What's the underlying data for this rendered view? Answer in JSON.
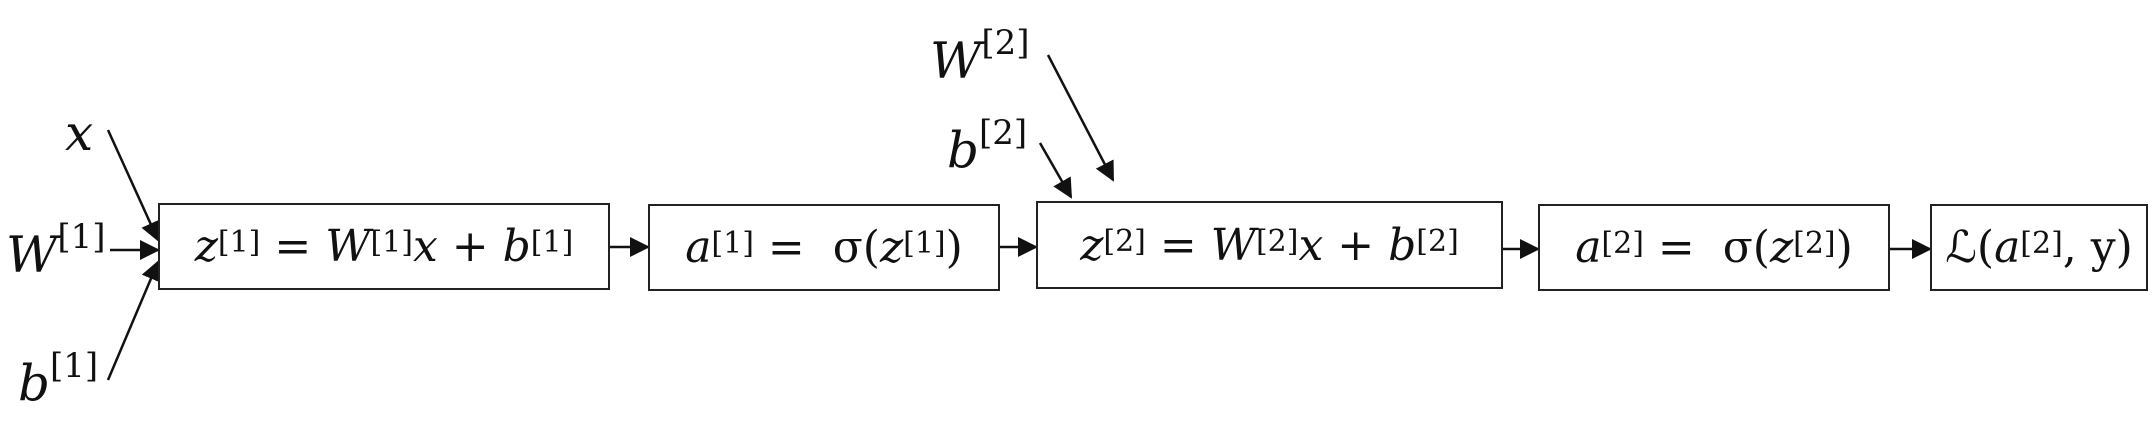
{
  "inputs": {
    "x": "x",
    "W1": "W",
    "W1_sup": "[1]",
    "b1": "b",
    "b1_sup": "[1]",
    "W2": "W",
    "W2_sup": "[2]",
    "b2": "b",
    "b2_sup": "[2]"
  },
  "boxes": [
    {
      "id": "z1",
      "parts": [
        "z",
        "[1]",
        " = ",
        "W",
        "[1]",
        "x",
        " + ",
        "b",
        "[1]"
      ]
    },
    {
      "id": "a1",
      "parts": [
        "a",
        "[1]",
        " =  σ(",
        "z",
        "[1]",
        ")"
      ]
    },
    {
      "id": "z2",
      "parts": [
        "z",
        "[2]",
        " = ",
        "W",
        "[2]",
        "x",
        " + ",
        "b",
        "[2]"
      ]
    },
    {
      "id": "a2",
      "parts": [
        "a",
        "[2]",
        " =  σ(",
        "z",
        "[2]",
        ")"
      ]
    },
    {
      "id": "loss",
      "parts": [
        "ℒ(",
        "a",
        "[2]",
        ", y)"
      ]
    }
  ]
}
